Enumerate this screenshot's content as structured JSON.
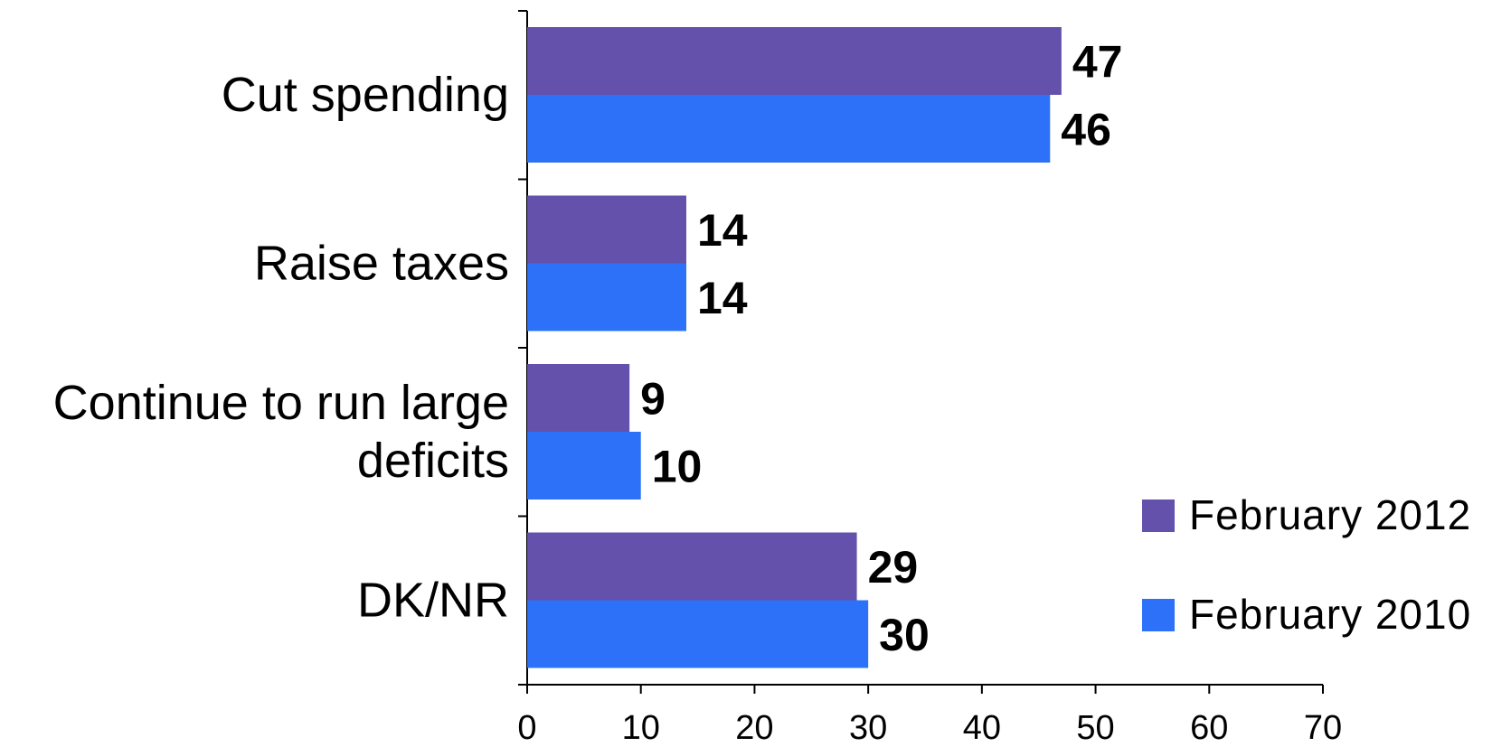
{
  "chart_data": {
    "type": "bar",
    "orientation": "horizontal",
    "categories": [
      "Cut spending",
      "Raise taxes",
      "Continue to run large deficits",
      "DK/NR"
    ],
    "category_lines": [
      [
        "Cut spending"
      ],
      [
        "Raise taxes"
      ],
      [
        "Continue to run large",
        "deficits"
      ],
      [
        "DK/NR"
      ]
    ],
    "series": [
      {
        "name": "February 2012",
        "color": "#6351ab",
        "values": [
          47,
          14,
          9,
          29
        ]
      },
      {
        "name": "February 2010",
        "color": "#2d71f8",
        "values": [
          46,
          14,
          10,
          30
        ]
      }
    ],
    "xlim": [
      0,
      70
    ],
    "xticks": [
      0,
      10,
      20,
      30,
      40,
      50,
      60,
      70
    ],
    "title": "",
    "xlabel": "",
    "ylabel": "",
    "grid": false,
    "legend_position": "bottom-right"
  }
}
